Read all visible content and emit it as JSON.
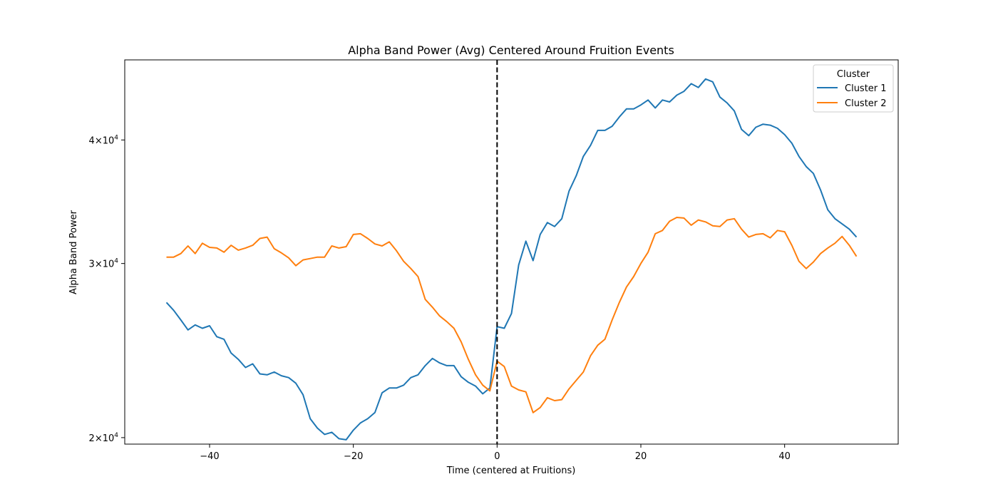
{
  "chart_data": {
    "type": "line",
    "title": "Alpha Band Power (Avg) Centered Around Fruition Events",
    "xlabel": "Time (centered at Fruitions)",
    "ylabel": "Alpha Band Power",
    "y_scale": "log",
    "xlim": [
      -51.8,
      55.8
    ],
    "ylim": [
      19700,
      48200
    ],
    "x_ticks": [
      -40,
      -20,
      0,
      20,
      40
    ],
    "x_tick_labels": [
      "−40",
      "−20",
      "0",
      "20",
      "40"
    ],
    "y_ticks": [
      {
        "value": 20000,
        "mantissa": "2",
        "base": "10",
        "exp": "4"
      },
      {
        "value": 30000,
        "mantissa": "3",
        "base": "10",
        "exp": "4"
      },
      {
        "value": 40000,
        "mantissa": "4",
        "base": "10",
        "exp": "4"
      }
    ],
    "grid": false,
    "legend": {
      "title": "Cluster",
      "placement": "top-right"
    },
    "vline": {
      "x": 0,
      "style": "dashed",
      "color": "#000000"
    },
    "x": [
      -46,
      -45,
      -44,
      -43,
      -42,
      -41,
      -40,
      -39,
      -38,
      -37,
      -36,
      -35,
      -34,
      -33,
      -32,
      -31,
      -30,
      -29,
      -28,
      -27,
      -26,
      -25,
      -24,
      -23,
      -22,
      -21,
      -20,
      -19,
      -18,
      -17,
      -16,
      -15,
      -14,
      -13,
      -12,
      -11,
      -10,
      -9,
      -8,
      -7,
      -6,
      -5,
      -4,
      -3,
      -2,
      -1,
      0,
      1,
      2,
      3,
      4,
      5,
      6,
      7,
      8,
      9,
      10,
      11,
      12,
      13,
      14,
      15,
      16,
      17,
      18,
      19,
      20,
      21,
      22,
      23,
      24,
      25,
      26,
      27,
      28,
      29,
      30,
      31,
      32,
      33,
      34,
      35,
      36,
      37,
      38,
      39,
      40,
      41,
      42,
      43,
      44,
      45,
      46,
      47,
      48,
      49,
      50
    ],
    "series": [
      {
        "name": "Cluster 1",
        "color": "#1f77b4",
        "values": [
          27400,
          26900,
          26300,
          25700,
          26000,
          25800,
          25950,
          25300,
          25150,
          24350,
          24000,
          23550,
          23750,
          23200,
          23150,
          23300,
          23100,
          23000,
          22700,
          22100,
          20900,
          20450,
          20150,
          20250,
          19950,
          19900,
          20350,
          20700,
          20900,
          21200,
          22200,
          22450,
          22450,
          22600,
          23000,
          23150,
          23650,
          24050,
          23800,
          23650,
          23650,
          23050,
          22750,
          22550,
          22150,
          22450,
          25900,
          25800,
          26700,
          29900,
          31600,
          30200,
          32100,
          33000,
          32700,
          33300,
          35500,
          36800,
          38500,
          39500,
          40900,
          40900,
          41300,
          42200,
          43000,
          43000,
          43400,
          43900,
          43100,
          43900,
          43700,
          44400,
          44800,
          45600,
          45200,
          46100,
          45800,
          44200,
          43600,
          42800,
          41000,
          40400,
          41200,
          41500,
          41400,
          41100,
          40500,
          39700,
          38500,
          37600,
          37000,
          35600,
          34000,
          33300,
          32900,
          32500,
          31900
        ]
      },
      {
        "name": "Cluster 2",
        "color": "#ff7f0e",
        "values": [
          30450,
          30450,
          30700,
          31250,
          30700,
          31450,
          31150,
          31100,
          30800,
          31300,
          30950,
          31100,
          31300,
          31800,
          31900,
          31050,
          30750,
          30400,
          29850,
          30250,
          30350,
          30450,
          30450,
          31250,
          31100,
          31200,
          32100,
          32150,
          31800,
          31400,
          31250,
          31550,
          30900,
          30150,
          29650,
          29100,
          27600,
          27100,
          26550,
          26200,
          25800,
          25000,
          24000,
          23150,
          22600,
          22300,
          23900,
          23600,
          22550,
          22350,
          22250,
          21200,
          21450,
          21950,
          21800,
          21850,
          22400,
          22850,
          23300,
          24200,
          24800,
          25150,
          26300,
          27400,
          28400,
          29100,
          30000,
          30800,
          32150,
          32400,
          33100,
          33400,
          33350,
          32800,
          33200,
          33050,
          32750,
          32700,
          33200,
          33300,
          32500,
          31900,
          32100,
          32150,
          31850,
          32400,
          32300,
          31300,
          30150,
          29650,
          30100,
          30700,
          31100,
          31450,
          31950,
          31300,
          30500
        ]
      }
    ]
  }
}
